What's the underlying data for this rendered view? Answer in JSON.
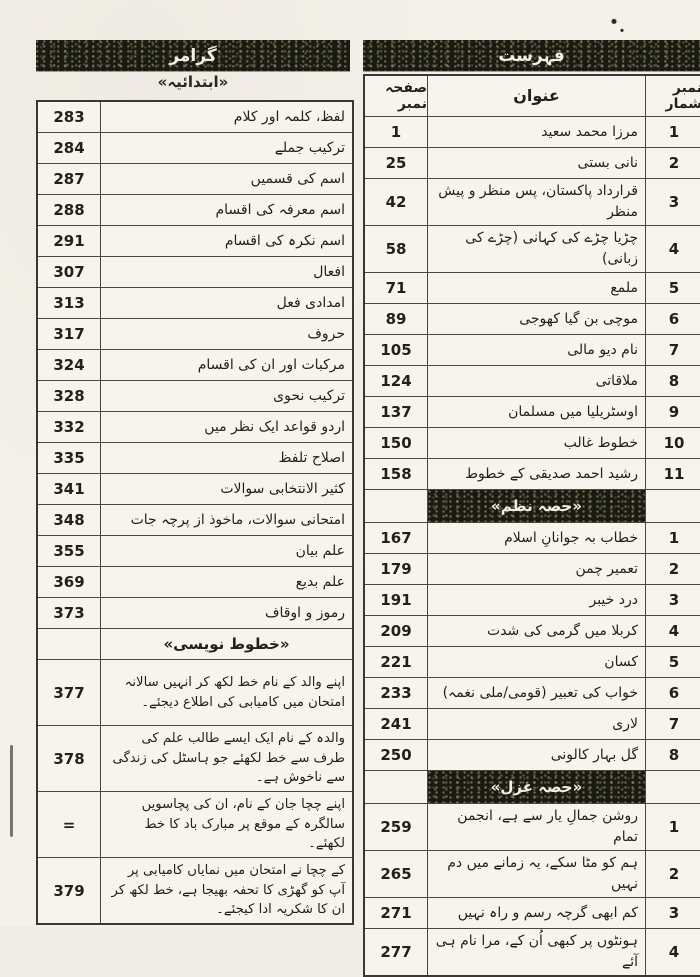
{
  "left_table": {
    "band_title": "گرامر",
    "intro_heading": "«ابتدائیہ»",
    "items": [
      {
        "page": "283",
        "title": "لفظ، کلمہ اور کلام"
      },
      {
        "page": "284",
        "title": "ترکیب جملے"
      },
      {
        "page": "287",
        "title": "اسم کی قسمیں"
      },
      {
        "page": "288",
        "title": "اسم معرفہ کی اقسام"
      },
      {
        "page": "291",
        "title": "اسم نکرہ کی اقسام"
      },
      {
        "page": "307",
        "title": "افعال"
      },
      {
        "page": "313",
        "title": "امدادی فعل"
      },
      {
        "page": "317",
        "title": "حروف"
      },
      {
        "page": "324",
        "title": "مرکبات اور ان کی اقسام"
      },
      {
        "page": "328",
        "title": "ترکیب نحوی"
      },
      {
        "page": "332",
        "title": "اردو قواعد ایک نظر میں"
      },
      {
        "page": "335",
        "title": "اصلاح تلفظ"
      },
      {
        "page": "341",
        "title": "کثیر الانتخابی سوالات"
      },
      {
        "page": "348",
        "title": "امتحانی سوالات، ماخوذ از پرچہ جات"
      },
      {
        "page": "355",
        "title": "علم بیان"
      },
      {
        "page": "369",
        "title": "علم بدیع"
      },
      {
        "page": "373",
        "title": "رموز و اوقاف"
      },
      {
        "heading": "«خطوط نویسی»"
      },
      {
        "page": "377",
        "tall": true,
        "title": "اپنے والد کے نام خط لکھ کر انہیں سالانہ امتحان میں کامیابی کی اطلاع دیجئے۔"
      },
      {
        "page": "378",
        "tall": true,
        "title": "والدہ کے نام ایک ایسے طالب علم کی طرف سے خط لکھئے جو ہاسٹل کی زندگی سے ناخوش ہے۔"
      },
      {
        "page": "=",
        "tall": true,
        "title": "اپنے چچا جان کے نام، ان کی پچاسویں سالگرہ کے موقع پر مبارک باد کا خط لکھئے۔"
      },
      {
        "page": "379",
        "tall": true,
        "title": "کے چچا نے امتحان میں نمایاں کامیابی پر آپ کو گھڑی کا تحفہ بھیجا ہے، خط لکھ کر ان کا شکریہ ادا کیجئے۔"
      }
    ]
  },
  "right_table": {
    "band_title": "فہرست",
    "headers": {
      "serial": "نمبر شمار",
      "title": "عنوان",
      "page": "صفحہ نمبر"
    },
    "sections": [
      {
        "rows": [
          {
            "no": "1",
            "title": "مرزا محمد سعید",
            "page": "1"
          },
          {
            "no": "2",
            "title": "نانی بستی",
            "page": "25"
          },
          {
            "no": "3",
            "title": "قرارداد پاکستان، پس منظر و پیش منظر",
            "page": "42"
          },
          {
            "no": "4",
            "title": "چڑیا چڑے کی کہانی (چڑے کی زبانی)",
            "page": "58"
          },
          {
            "no": "5",
            "title": "ملمع",
            "page": "71"
          },
          {
            "no": "6",
            "title": "موچی بن گیا کھوجی",
            "page": "89"
          },
          {
            "no": "7",
            "title": "نام دیو مالی",
            "page": "105"
          },
          {
            "no": "8",
            "title": "ملاقاتی",
            "page": "124"
          },
          {
            "no": "9",
            "title": "اوسٹریلیا میں مسلمان",
            "page": "137"
          },
          {
            "no": "10",
            "title": "خطوط غالب",
            "page": "150"
          },
          {
            "no": "11",
            "title": "رشید احمد صدیقی کے خطوط",
            "page": "158"
          }
        ]
      },
      {
        "heading": "«حصہ نظم»",
        "rows": [
          {
            "no": "1",
            "title": "خطاب بہ جوانانِ اسلام",
            "page": "167"
          },
          {
            "no": "2",
            "title": "تعمیر چمن",
            "page": "179"
          },
          {
            "no": "3",
            "title": "درد خیبر",
            "page": "191"
          },
          {
            "no": "4",
            "title": "کربلا میں گرمی کی شدت",
            "page": "209"
          },
          {
            "no": "5",
            "title": "کسان",
            "page": "221"
          },
          {
            "no": "6",
            "title": "خواب کی تعبیر (قومی/ملی نغمہ)",
            "page": "233"
          },
          {
            "no": "7",
            "title": "لاری",
            "page": "241"
          },
          {
            "no": "8",
            "title": "گل بہار کالونی",
            "page": "250"
          }
        ]
      },
      {
        "heading": "«حصہ غزل»",
        "rows": [
          {
            "no": "1",
            "title": "روشن جمالِ یار سے ہے، انجمن تمام",
            "page": "259"
          },
          {
            "no": "2",
            "title": "ہم کو مٹا سکے، یہ زمانے میں دم نہیں",
            "page": "265"
          },
          {
            "no": "3",
            "title": "کم ابھی گرچہ رسم و راہ نہیں",
            "page": "271"
          },
          {
            "no": "4",
            "title": "ہونٹوں پر کبھی اُن کے، مرا نام ہی آئے",
            "page": "277"
          }
        ]
      }
    ]
  }
}
